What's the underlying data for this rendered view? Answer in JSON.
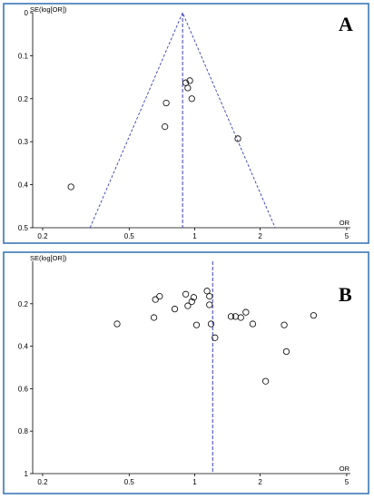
{
  "chart_data": [
    {
      "type": "scatter",
      "panel_label": "A",
      "xlabel": "OR",
      "ylabel": "SE(log[OR])",
      "x_scale": "log",
      "xlim": [
        0.18,
        5.2
      ],
      "ylim": [
        0,
        0.5
      ],
      "y_inverted": true,
      "x_ticks": [
        0.2,
        0.5,
        1,
        2,
        5
      ],
      "x_tick_labels": [
        "0.2",
        "0.5",
        "1",
        "2",
        "5"
      ],
      "y_ticks": [
        0,
        0.1,
        0.2,
        0.3,
        0.4,
        0.5
      ],
      "y_tick_labels": [
        "0",
        "0.1",
        "0.2",
        "0.3",
        "0.4",
        "0.5"
      ],
      "pooled_or": 0.88,
      "funnel": true,
      "points": [
        {
          "or": 0.27,
          "se": 0.405
        },
        {
          "or": 0.73,
          "se": 0.265
        },
        {
          "or": 0.74,
          "se": 0.21
        },
        {
          "or": 0.91,
          "se": 0.163
        },
        {
          "or": 0.93,
          "se": 0.175
        },
        {
          "or": 0.95,
          "se": 0.158
        },
        {
          "or": 0.97,
          "se": 0.2
        },
        {
          "or": 1.58,
          "se": 0.293
        }
      ]
    },
    {
      "type": "scatter",
      "panel_label": "B",
      "xlabel": "OR",
      "ylabel": "SE(log[OR])",
      "x_scale": "log",
      "xlim": [
        0.18,
        5.2
      ],
      "ylim": [
        0,
        1
      ],
      "y_inverted": true,
      "x_ticks": [
        0.2,
        0.5,
        1,
        2,
        5
      ],
      "x_tick_labels": [
        "0.2",
        "0.5",
        "1",
        "2",
        "5"
      ],
      "y_ticks": [
        0.2,
        0.4,
        0.6,
        0.8,
        1
      ],
      "y_tick_labels": [
        "0.2",
        "0.4",
        "0.6",
        "0.8",
        "1"
      ],
      "pooled_or": 1.21,
      "funnel": false,
      "points": [
        {
          "or": 0.44,
          "se": 0.295
        },
        {
          "or": 0.65,
          "se": 0.265
        },
        {
          "or": 0.66,
          "se": 0.18
        },
        {
          "or": 0.69,
          "se": 0.165
        },
        {
          "or": 0.81,
          "se": 0.225
        },
        {
          "or": 0.91,
          "se": 0.155
        },
        {
          "or": 0.93,
          "se": 0.21
        },
        {
          "or": 0.97,
          "se": 0.19
        },
        {
          "or": 0.99,
          "se": 0.17
        },
        {
          "or": 1.02,
          "se": 0.3
        },
        {
          "or": 1.14,
          "se": 0.14
        },
        {
          "or": 1.17,
          "se": 0.165
        },
        {
          "or": 1.17,
          "se": 0.205
        },
        {
          "or": 1.19,
          "se": 0.295
        },
        {
          "or": 1.24,
          "se": 0.36
        },
        {
          "or": 1.47,
          "se": 0.26
        },
        {
          "or": 1.54,
          "se": 0.26
        },
        {
          "or": 1.63,
          "se": 0.265
        },
        {
          "or": 1.72,
          "se": 0.24
        },
        {
          "or": 1.85,
          "se": 0.295
        },
        {
          "or": 2.12,
          "se": 0.565
        },
        {
          "or": 2.58,
          "se": 0.3
        },
        {
          "or": 2.64,
          "se": 0.425
        },
        {
          "or": 3.52,
          "se": 0.255
        }
      ]
    }
  ]
}
